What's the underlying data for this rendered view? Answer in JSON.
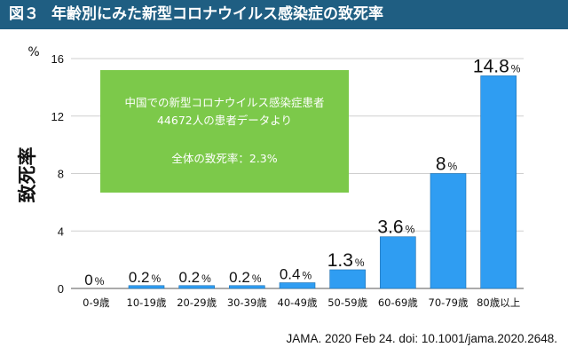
{
  "header": {
    "figure_number": "図３",
    "title": "年齢別にみた新型コロナウイルス感染症の致死率"
  },
  "annotation": {
    "line1": "中国での新型コロナウイルス感染症患者",
    "line2": "44672人の患者データより",
    "line3": "全体の致死率：2.3%",
    "box_color": "#7cc94a"
  },
  "source": "JAMA. 2020 Feb 24. doi: 10.1001/jama.2020.2648.",
  "chart_data": {
    "type": "bar",
    "title": "",
    "ylabel": "致死率",
    "yunit": "%",
    "ylim": [
      0,
      16
    ],
    "yticks": [
      0,
      4,
      8,
      12,
      16
    ],
    "grid": true,
    "bar_color": "#2f9df2",
    "categories": [
      "0-9歳",
      "10-19歳",
      "20-29歳",
      "30-39歳",
      "40-49歳",
      "50-59歳",
      "60-69歳",
      "70-79歳",
      "80歳以上"
    ],
    "values": [
      0,
      0.2,
      0.2,
      0.2,
      0.4,
      1.3,
      3.6,
      8,
      14.8
    ],
    "data_labels": [
      "0",
      "0.2",
      "0.2",
      "0.2",
      "0.4",
      "1.3",
      "3.6",
      "8",
      "14.8"
    ],
    "data_label_unit": "%"
  }
}
